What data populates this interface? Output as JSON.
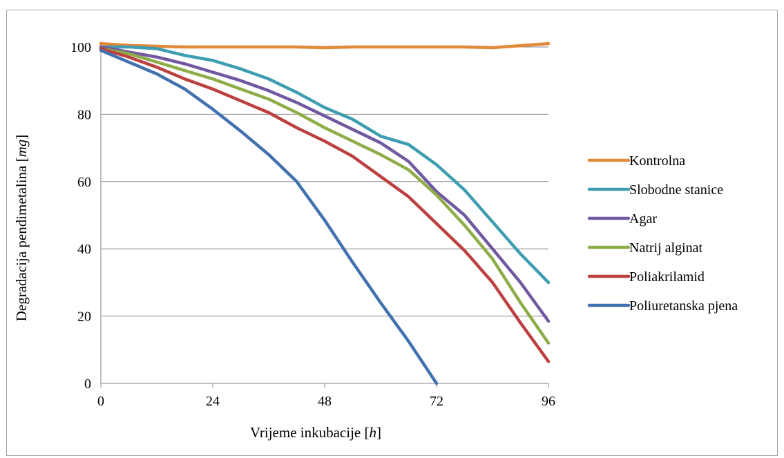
{
  "chart_data": {
    "type": "line",
    "title": "",
    "xlabel": {
      "text": "Vrijeme inkubacije [",
      "unit": "h",
      "suffix": "]"
    },
    "ylabel": {
      "text": "Degradacija pendimetalina [",
      "unit": "mg",
      "suffix": "]"
    },
    "xlim": [
      0,
      96
    ],
    "ylim": [
      0,
      100
    ],
    "x_ticks": [
      0,
      24,
      48,
      72,
      96
    ],
    "y_ticks": [
      0,
      20,
      40,
      60,
      80,
      100
    ],
    "grid": "horizontal",
    "legend_position": "right",
    "series": [
      {
        "name": "Kontrolna",
        "color": "#E3893A",
        "points": [
          [
            0,
            101
          ],
          [
            6,
            100.5
          ],
          [
            12,
            100.2
          ],
          [
            18,
            100
          ],
          [
            24,
            100
          ],
          [
            30,
            100
          ],
          [
            36,
            100
          ],
          [
            42,
            100
          ],
          [
            48,
            99.8
          ],
          [
            54,
            100
          ],
          [
            60,
            100
          ],
          [
            66,
            100
          ],
          [
            72,
            100
          ],
          [
            78,
            100
          ],
          [
            84,
            99.8
          ],
          [
            90,
            100.4
          ],
          [
            96,
            101
          ]
        ]
      },
      {
        "name": "Slobodne stanice",
        "color": "#3E9DB0",
        "points": [
          [
            0,
            100
          ],
          [
            6,
            100
          ],
          [
            12,
            99.5
          ],
          [
            18,
            97.5
          ],
          [
            24,
            96
          ],
          [
            30,
            93.5
          ],
          [
            36,
            90.5
          ],
          [
            42,
            86.5
          ],
          [
            48,
            82
          ],
          [
            54,
            78.5
          ],
          [
            60,
            73.5
          ],
          [
            66,
            71
          ],
          [
            72,
            65
          ],
          [
            78,
            57.5
          ],
          [
            84,
            48
          ],
          [
            90,
            38.5
          ],
          [
            96,
            30
          ]
        ]
      },
      {
        "name": "Agar",
        "color": "#7158A0",
        "points": [
          [
            0,
            100
          ],
          [
            6,
            98.5
          ],
          [
            12,
            97
          ],
          [
            18,
            95
          ],
          [
            24,
            92.5
          ],
          [
            30,
            90
          ],
          [
            36,
            87
          ],
          [
            42,
            83.5
          ],
          [
            48,
            79.5
          ],
          [
            54,
            75.5
          ],
          [
            60,
            71.5
          ],
          [
            66,
            66
          ],
          [
            72,
            57
          ],
          [
            78,
            50
          ],
          [
            84,
            40
          ],
          [
            90,
            30
          ],
          [
            96,
            18.5
          ]
        ]
      },
      {
        "name": "Natrij alginat",
        "color": "#8DAD48",
        "points": [
          [
            0,
            99.5
          ],
          [
            6,
            98
          ],
          [
            12,
            95.5
          ],
          [
            18,
            93
          ],
          [
            24,
            90.5
          ],
          [
            30,
            87.5
          ],
          [
            36,
            84.5
          ],
          [
            42,
            80.5
          ],
          [
            48,
            76
          ],
          [
            54,
            72
          ],
          [
            60,
            68
          ],
          [
            66,
            63.5
          ],
          [
            72,
            56
          ],
          [
            78,
            47
          ],
          [
            84,
            37
          ],
          [
            90,
            24
          ],
          [
            96,
            12
          ]
        ]
      },
      {
        "name": "Poliakrilamid",
        "color": "#BD4040",
        "points": [
          [
            0,
            99.5
          ],
          [
            6,
            97
          ],
          [
            12,
            94
          ],
          [
            18,
            90.5
          ],
          [
            24,
            87.5
          ],
          [
            30,
            84
          ],
          [
            36,
            80.5
          ],
          [
            42,
            76
          ],
          [
            48,
            72
          ],
          [
            54,
            67.5
          ],
          [
            60,
            61.5
          ],
          [
            66,
            55.5
          ],
          [
            72,
            47.5
          ],
          [
            78,
            39.5
          ],
          [
            84,
            30
          ],
          [
            90,
            18
          ],
          [
            96,
            6.5
          ]
        ]
      },
      {
        "name": "Poliuretanska pjena",
        "color": "#4171AE",
        "points": [
          [
            0,
            99
          ],
          [
            6,
            95.5
          ],
          [
            12,
            92
          ],
          [
            18,
            87.5
          ],
          [
            24,
            81.5
          ],
          [
            30,
            75
          ],
          [
            36,
            68
          ],
          [
            42,
            60
          ],
          [
            48,
            48.5
          ],
          [
            54,
            36
          ],
          [
            60,
            24
          ],
          [
            66,
            12.5
          ],
          [
            72,
            0
          ]
        ]
      }
    ]
  }
}
